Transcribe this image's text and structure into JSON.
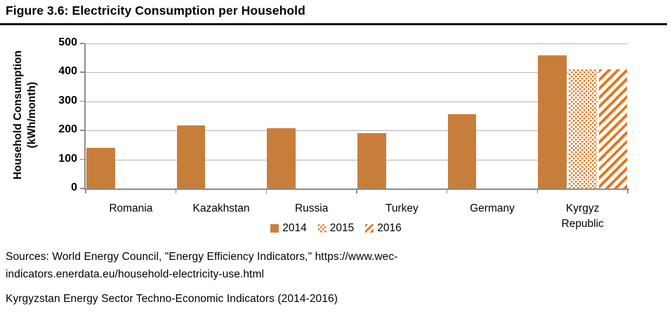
{
  "title": "Figure 3.6: Electricity Consumption per Household",
  "chart_data": {
    "type": "bar",
    "title": "Figure 3.6: Electricity Consumption per Household",
    "categories": [
      [
        "Romania"
      ],
      [
        "Kazakhstan"
      ],
      [
        "Russia"
      ],
      [
        "Turkey"
      ],
      [
        "Germany"
      ],
      [
        "Kyrgyz",
        "Republic"
      ]
    ],
    "series": [
      {
        "name": "2014",
        "pattern": "solid",
        "color": "#c87e3b",
        "values": [
          140,
          218,
          207,
          192,
          256,
          460
        ]
      },
      {
        "name": "2015",
        "pattern": "dotted",
        "color": "#e8751a",
        "values": [
          null,
          null,
          null,
          null,
          null,
          410
        ]
      },
      {
        "name": "2016",
        "pattern": "stripe",
        "color": "#e8751a",
        "values": [
          null,
          null,
          null,
          null,
          null,
          410
        ]
      }
    ],
    "xlabel": "",
    "ylabel_lines": [
      "Household Consumption",
      "(kWh/month)"
    ],
    "ylim": [
      0,
      500
    ],
    "yticks": [
      0,
      100,
      200,
      300,
      400,
      500
    ],
    "grid": true,
    "legend_position": "bottom-center",
    "colors": {
      "grid": "#b3b3b3",
      "axis": "#8c8c8c",
      "text": "#000000"
    }
  },
  "footer": {
    "source_line1": "Sources: World Energy Council, \"Energy Efficiency Indicators,\" https://www.wec-",
    "source_line2": "indicators.enerdata.eu/household-electricity-use.html",
    "source_line3": "Kyrgyzstan Energy Sector Techno-Economic Indicators (2014-2016)"
  }
}
